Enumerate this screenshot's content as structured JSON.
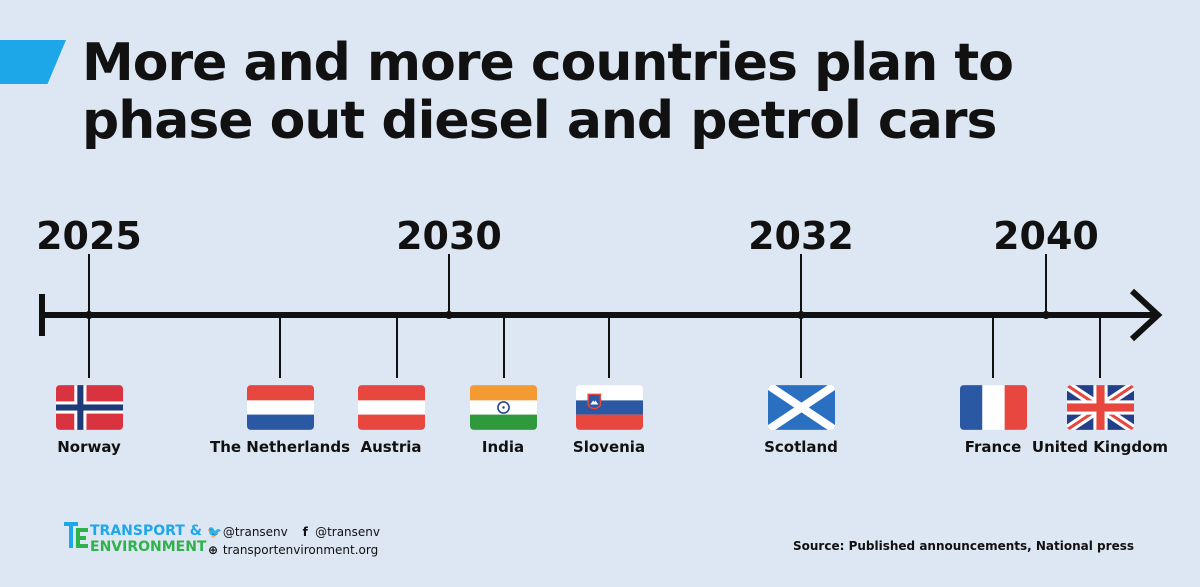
{
  "title": "More and more countries plan to phase out diesel and petrol cars",
  "years": [
    {
      "label": "2025"
    },
    {
      "label": "2030"
    },
    {
      "label": "2032"
    },
    {
      "label": "2040"
    }
  ],
  "countries": [
    {
      "label": "Norway",
      "flag": "norway-flag"
    },
    {
      "label": "The Netherlands",
      "flag": "netherlands-flag"
    },
    {
      "label": "Austria",
      "flag": "austria-flag"
    },
    {
      "label": "India",
      "flag": "india-flag"
    },
    {
      "label": "Slovenia",
      "flag": "slovenia-flag"
    },
    {
      "label": "Scotland",
      "flag": "scotland-flag"
    },
    {
      "label": "France",
      "flag": "france-flag"
    },
    {
      "label": "United Kingdom",
      "flag": "uk-flag"
    }
  ],
  "footer": {
    "logo_line1": "TRANSPORT &",
    "logo_line2": "ENVIRONMENT",
    "twitter": "@transenv",
    "facebook": "@transenv",
    "website": "transportenvironment.org",
    "source": "Source: Published announcements, National press"
  },
  "colors": {
    "background": "#dde6f3",
    "accent": "#1ea7e8",
    "brand_green": "#2fb24a"
  }
}
